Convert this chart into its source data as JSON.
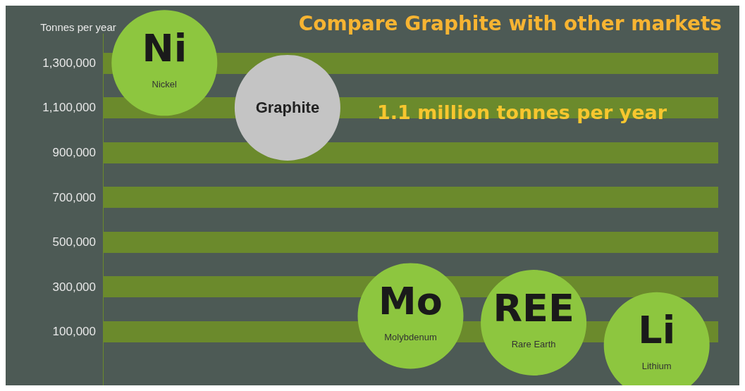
{
  "chart_data": {
    "type": "scatter",
    "title": "Compare Graphite with other markets",
    "ylabel": "Tonnes per year",
    "categories": [
      "Nickel",
      "Graphite",
      "Molybdenum",
      "Rare Earth",
      "Lithium"
    ],
    "values": [
      1300000,
      1100000,
      170000,
      140000,
      40000
    ],
    "value_labels": [
      "Ni",
      null,
      "Mo",
      "REE",
      "Li"
    ],
    "colors": [
      "#8dc63f",
      "#c4c4c4",
      "#8dc63f",
      "#8dc63f",
      "#8dc63f"
    ],
    "annotations": [
      "1.1 million tonnes per year"
    ],
    "yticks": [
      {
        "value": 100000,
        "label": "100,000"
      },
      {
        "value": 300000,
        "label": "300,000"
      },
      {
        "value": 500000,
        "label": "500,000"
      },
      {
        "value": 700000,
        "label": "700,000"
      },
      {
        "value": 900000,
        "label": "900,000"
      },
      {
        "value": 1100000,
        "label": "1,100,000"
      },
      {
        "value": 1300000,
        "label": "1,300,000"
      }
    ],
    "ylim": [
      -140000,
      1430000
    ],
    "grid": "y",
    "tick_labels": "y",
    "marker": "circle"
  }
}
